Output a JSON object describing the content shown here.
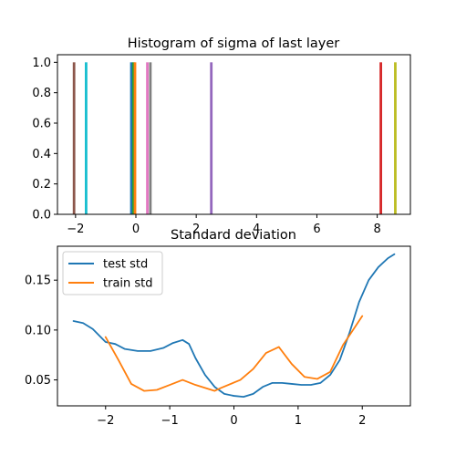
{
  "chart_data": [
    {
      "type": "bar",
      "title": "Histogram of sigma of last layer",
      "xlim": [
        -2.6,
        9.1
      ],
      "ylim": [
        0,
        1.05
      ],
      "xticks": [
        -2,
        0,
        2,
        4,
        6,
        8
      ],
      "yticks": [
        0.0,
        0.2,
        0.4,
        0.6,
        0.8,
        1.0
      ],
      "xtick_labels": [
        "−2",
        "0",
        "2",
        "4",
        "6",
        "8"
      ],
      "ytick_labels": [
        "0.0",
        "0.2",
        "0.4",
        "0.6",
        "0.8",
        "1.0"
      ],
      "bars": [
        {
          "x": -2.05,
          "value": 1.0,
          "color": "#8c564b"
        },
        {
          "x": -1.65,
          "value": 1.0,
          "color": "#17becf"
        },
        {
          "x": -0.15,
          "value": 1.0,
          "color": "#1f77b4"
        },
        {
          "x": -0.08,
          "value": 1.0,
          "color": "#2ca02c"
        },
        {
          "x": -0.03,
          "value": 1.0,
          "color": "#ff7f0e"
        },
        {
          "x": 0.38,
          "value": 1.0,
          "color": "#e377c2"
        },
        {
          "x": 0.48,
          "value": 1.0,
          "color": "#7f7f7f"
        },
        {
          "x": 2.5,
          "value": 1.0,
          "color": "#9467bd"
        },
        {
          "x": 8.12,
          "value": 1.0,
          "color": "#d62728"
        },
        {
          "x": 8.6,
          "value": 1.0,
          "color": "#bcbd22"
        }
      ]
    },
    {
      "type": "line",
      "title": "Standard deviation",
      "xlim": [
        -2.75,
        2.75
      ],
      "ylim": [
        0.024,
        0.184
      ],
      "xticks": [
        -2,
        -1,
        0,
        1,
        2
      ],
      "yticks": [
        0.05,
        0.1,
        0.15
      ],
      "xtick_labels": [
        "−2",
        "−1",
        "0",
        "1",
        "2"
      ],
      "ytick_labels": [
        "0.05",
        "0.10",
        "0.15"
      ],
      "legend_position": "upper-left",
      "series": [
        {
          "name": "test std",
          "color": "#1f77b4",
          "x": [
            -2.5,
            -2.35,
            -2.2,
            -2.0,
            -1.85,
            -1.7,
            -1.5,
            -1.3,
            -1.1,
            -0.95,
            -0.8,
            -0.7,
            -0.6,
            -0.45,
            -0.3,
            -0.15,
            0.0,
            0.15,
            0.3,
            0.45,
            0.6,
            0.75,
            0.9,
            1.05,
            1.2,
            1.35,
            1.5,
            1.65,
            1.8,
            1.95,
            2.1,
            2.25,
            2.4,
            2.5
          ],
          "y": [
            0.109,
            0.107,
            0.101,
            0.088,
            0.086,
            0.081,
            0.079,
            0.079,
            0.082,
            0.087,
            0.09,
            0.086,
            0.072,
            0.055,
            0.043,
            0.036,
            0.034,
            0.033,
            0.036,
            0.043,
            0.047,
            0.047,
            0.046,
            0.045,
            0.045,
            0.047,
            0.055,
            0.07,
            0.097,
            0.128,
            0.15,
            0.163,
            0.172,
            0.176
          ]
        },
        {
          "name": "train std",
          "color": "#ff7f0e",
          "x": [
            -2.0,
            -1.8,
            -1.6,
            -1.4,
            -1.2,
            -1.0,
            -0.8,
            -0.6,
            -0.3,
            -0.2,
            0.1,
            0.3,
            0.5,
            0.7,
            0.9,
            1.1,
            1.3,
            1.5,
            1.7,
            2.0
          ],
          "y": [
            0.093,
            0.07,
            0.046,
            0.039,
            0.04,
            0.045,
            0.05,
            0.045,
            0.039,
            0.042,
            0.05,
            0.061,
            0.077,
            0.083,
            0.066,
            0.053,
            0.051,
            0.058,
            0.085,
            0.114
          ]
        }
      ]
    }
  ]
}
